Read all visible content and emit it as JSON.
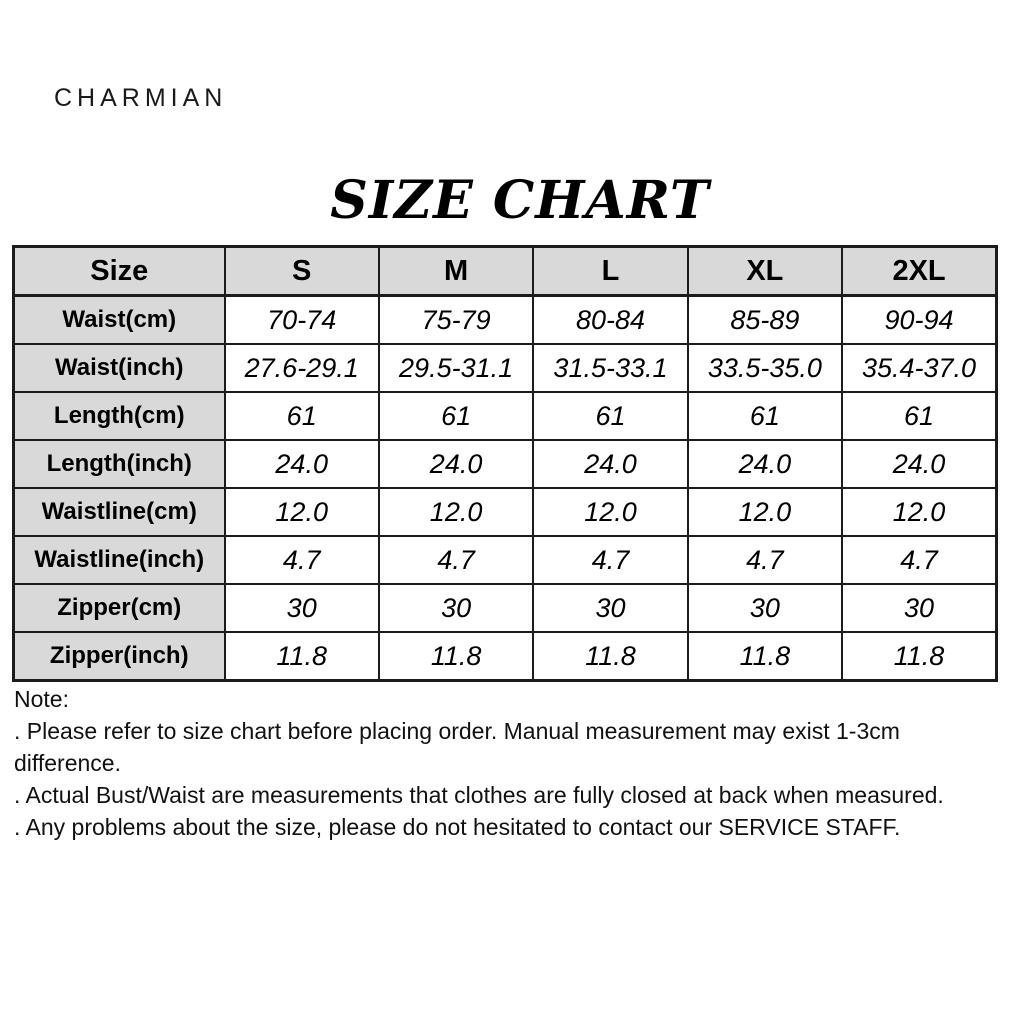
{
  "brand": "CHARMIAN",
  "title": "SIZE CHART",
  "table": {
    "columns": [
      "Size",
      "S",
      "M",
      "L",
      "XL",
      "2XL"
    ],
    "rows": [
      {
        "label": "Waist(cm)",
        "values": [
          "70-74",
          "75-79",
          "80-84",
          "85-89",
          "90-94"
        ]
      },
      {
        "label": "Waist(inch)",
        "values": [
          "27.6-29.1",
          "29.5-31.1",
          "31.5-33.1",
          "33.5-35.0",
          "35.4-37.0"
        ]
      },
      {
        "label": "Length(cm)",
        "values": [
          "61",
          "61",
          "61",
          "61",
          "61"
        ]
      },
      {
        "label": "Length(inch)",
        "values": [
          "24.0",
          "24.0",
          "24.0",
          "24.0",
          "24.0"
        ]
      },
      {
        "label": "Waistline(cm)",
        "values": [
          "12.0",
          "12.0",
          "12.0",
          "12.0",
          "12.0"
        ]
      },
      {
        "label": "Waistline(inch)",
        "values": [
          "4.7",
          "4.7",
          "4.7",
          "4.7",
          "4.7"
        ]
      },
      {
        "label": "Zipper(cm)",
        "values": [
          "30",
          "30",
          "30",
          "30",
          "30"
        ]
      },
      {
        "label": "Zipper(inch)",
        "values": [
          "11.8",
          "11.8",
          "11.8",
          "11.8",
          "11.8"
        ]
      }
    ]
  },
  "notes": {
    "heading": "Note:",
    "items": [
      ". Please refer to size chart before placing order. Manual measurement may exist 1-3cm difference.",
      ". Actual Bust/Waist are measurements that clothes are fully closed at back when measured.",
      ". Any problems about the size, please do not hesitated to contact our SERVICE STAFF."
    ]
  },
  "colors": {
    "header_bg": "#d9d9d9",
    "border": "#1c1c1c",
    "text": "#000000",
    "background": "#ffffff"
  }
}
